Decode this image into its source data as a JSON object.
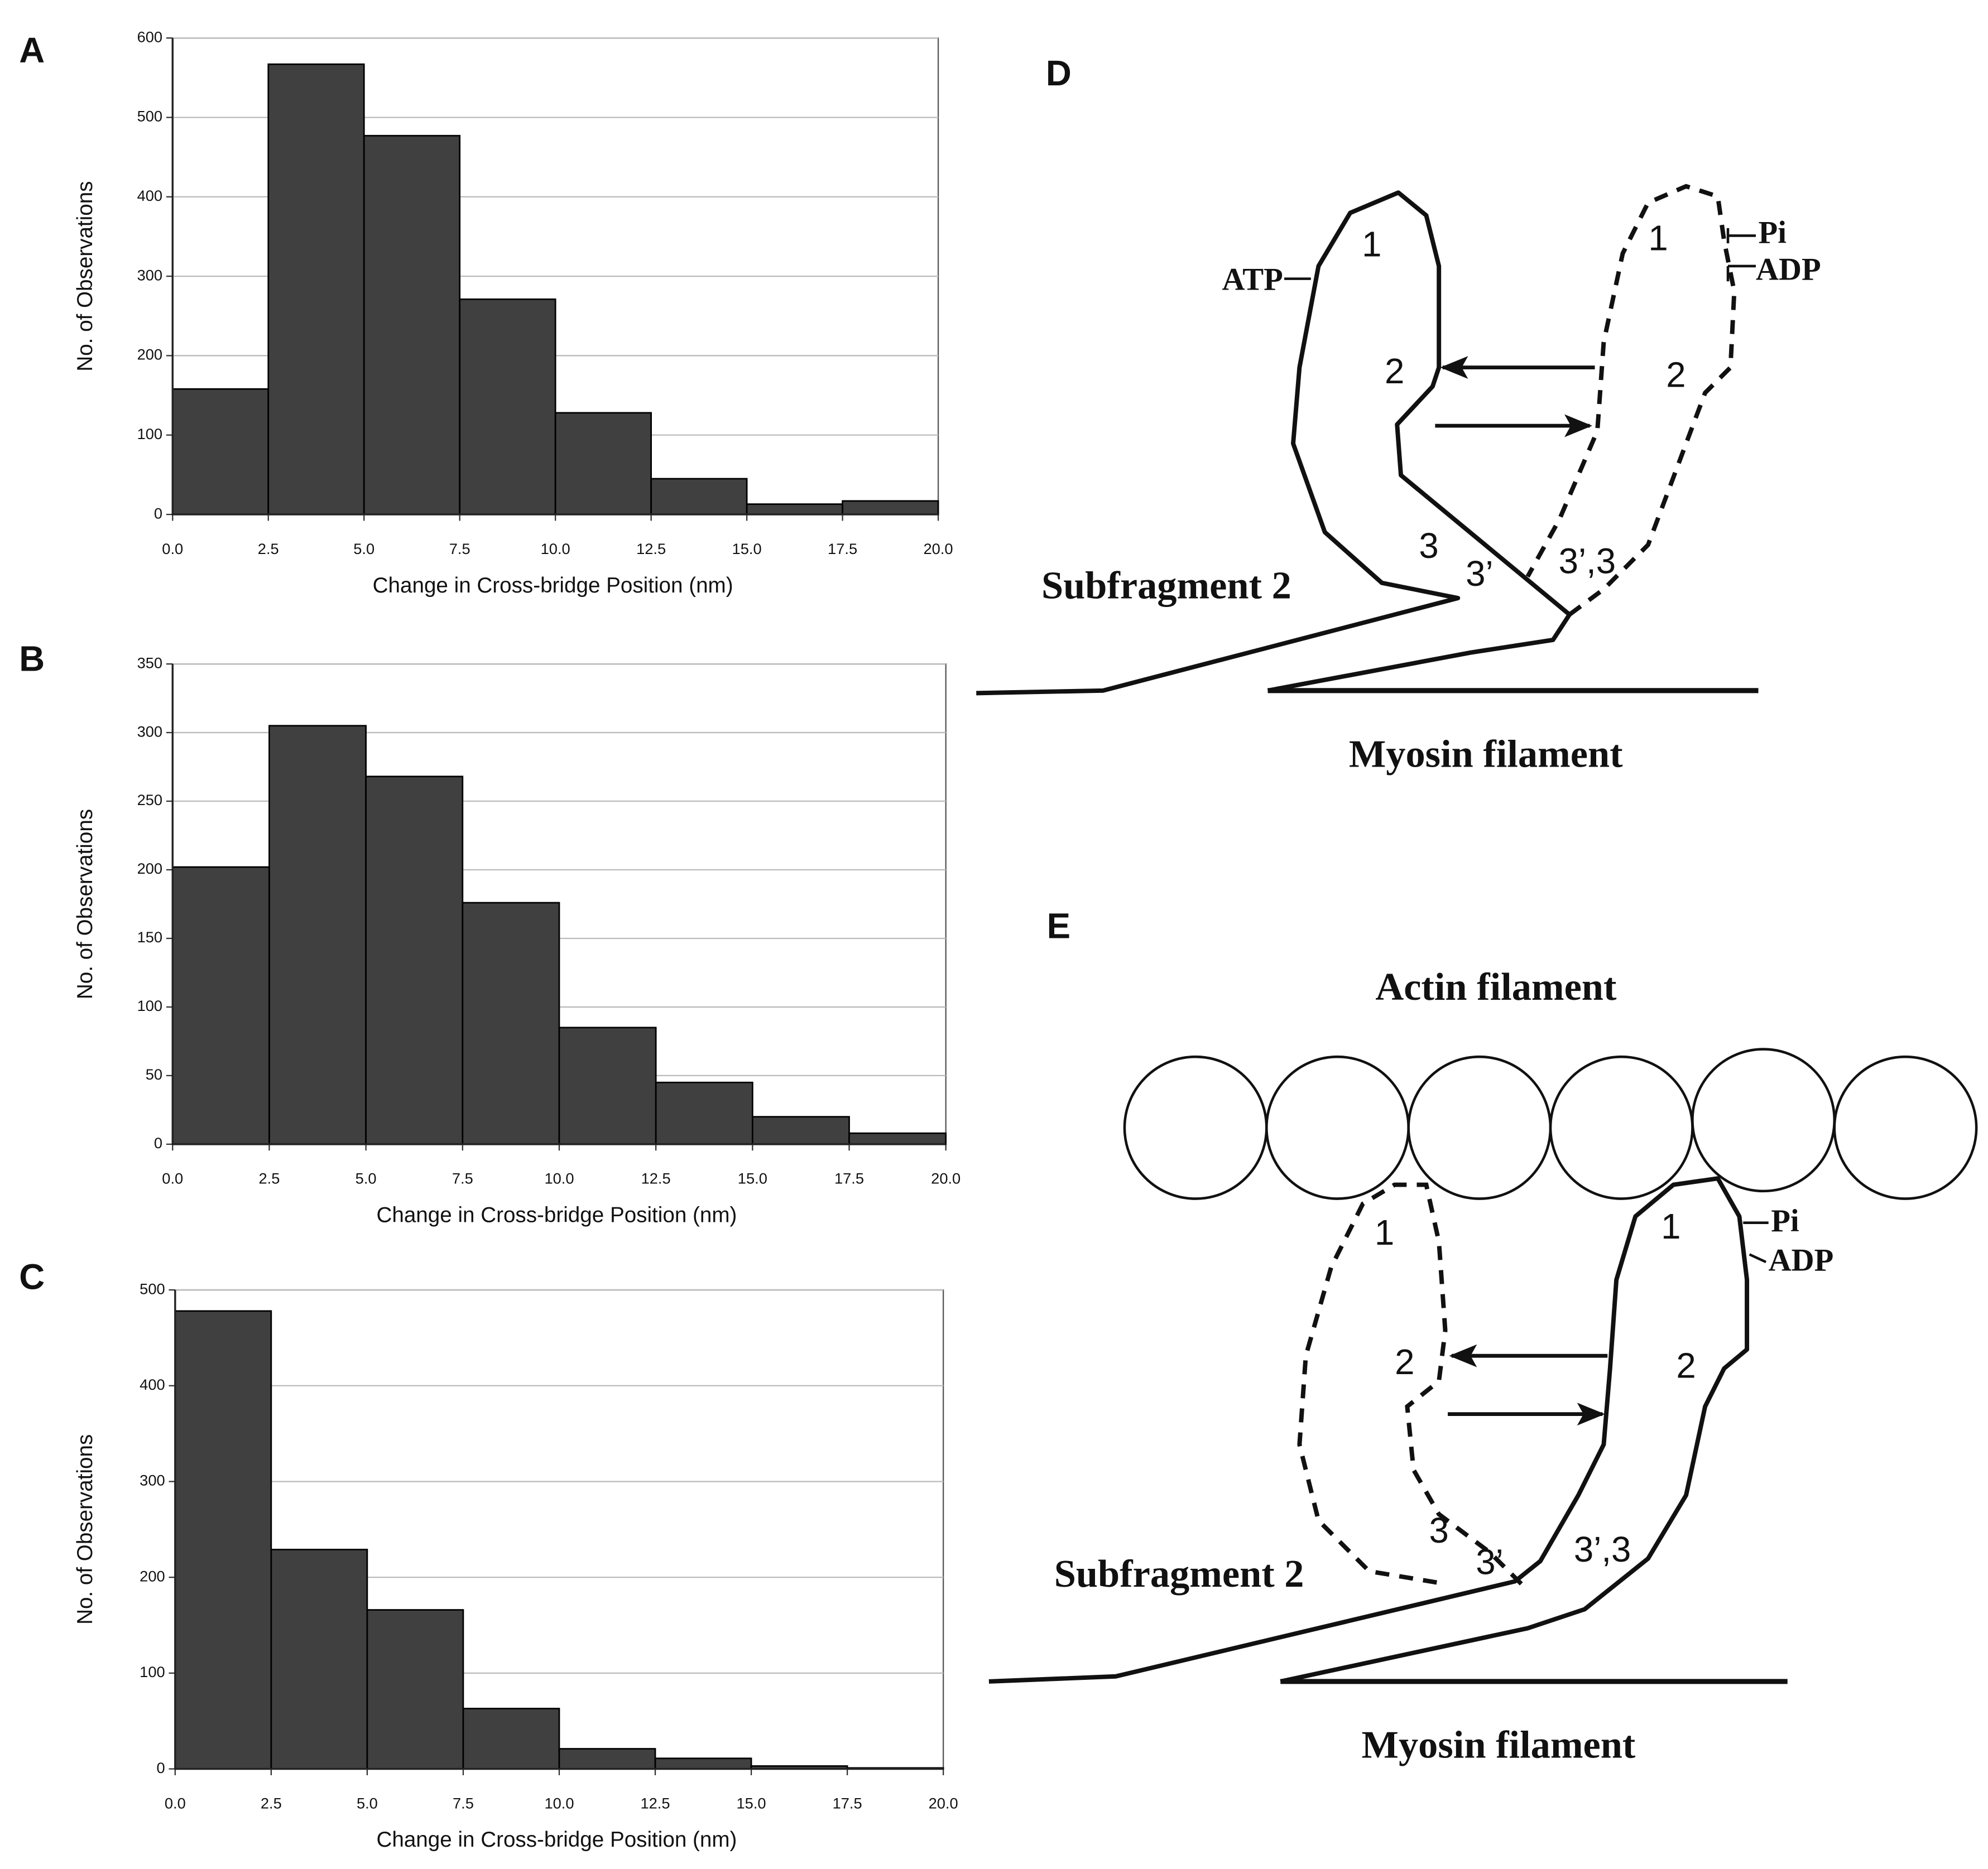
{
  "chart_data": [
    {
      "type": "histogram",
      "letter": "A",
      "xlabel": "Change in Cross-bridge Position (nm)",
      "ylabel": "No. of Observations",
      "bins": [
        0,
        2.5,
        5,
        7.5,
        10,
        12.5,
        15,
        17.5,
        20
      ],
      "values": [
        158,
        567,
        477,
        271,
        128,
        45,
        13,
        17
      ],
      "color": "#404040",
      "xlim": [
        0,
        20
      ],
      "xticks": [
        {
          "value": 0,
          "label": "0.0"
        },
        2.5,
        {
          "value": 5,
          "label": "5.0"
        },
        7.5,
        {
          "value": 10,
          "label": "10.0"
        },
        12.5,
        {
          "value": 15,
          "label": "15.0"
        },
        17.5,
        {
          "value": 20,
          "label": "20.0"
        }
      ],
      "ylim": [
        0,
        600
      ],
      "yticks": [
        0,
        100,
        200,
        300,
        400,
        500,
        600
      ],
      "grid": true
    },
    {
      "type": "histogram",
      "letter": "B",
      "xlabel": "Change in Cross-bridge Position (nm)",
      "ylabel": "No. of Observations",
      "bins": [
        0,
        2.5,
        5,
        7.5,
        10,
        12.5,
        15,
        17.5,
        20
      ],
      "values": [
        202,
        305,
        268,
        176,
        85,
        45,
        20,
        8
      ],
      "color": "#404040",
      "xlim": [
        0,
        20
      ],
      "xticks": [
        {
          "value": 0,
          "label": "0.0"
        },
        2.5,
        {
          "value": 5,
          "label": "5.0"
        },
        7.5,
        {
          "value": 10,
          "label": "10.0"
        },
        12.5,
        {
          "value": 15,
          "label": "15.0"
        },
        17.5,
        {
          "value": 20,
          "label": "20.0"
        }
      ],
      "ylim": [
        0,
        350
      ],
      "yticks": [
        0,
        50,
        100,
        150,
        200,
        250,
        300,
        350
      ],
      "grid": true
    },
    {
      "type": "histogram",
      "letter": "C",
      "xlabel": "Change in Cross-bridge Position (nm)",
      "ylabel": "No. of Observations",
      "bins": [
        0,
        2.5,
        5,
        7.5,
        10,
        12.5,
        15,
        17.5,
        20
      ],
      "values": [
        478,
        229,
        166,
        63,
        21,
        11,
        3,
        1
      ],
      "color": "#404040",
      "xlim": [
        0,
        20
      ],
      "xticks": [
        {
          "value": 0,
          "label": "0.0"
        },
        2.5,
        {
          "value": 5,
          "label": "5.0"
        },
        7.5,
        {
          "value": 10,
          "label": "10.0"
        },
        12.5,
        {
          "value": 15,
          "label": "15.0"
        },
        17.5,
        {
          "value": 20,
          "label": "20.0"
        }
      ],
      "ylim": [
        0,
        500
      ],
      "yticks": [
        0,
        100,
        200,
        300,
        400,
        500
      ],
      "grid": true
    }
  ],
  "diagrams": [
    {
      "letter": "D",
      "labels": [
        "ATP",
        "Pi",
        "ADP"
      ],
      "head_numbers": [
        "1",
        "2",
        "3",
        "3’"
      ],
      "outline_numbers": [
        "1",
        "2",
        "3’,3"
      ],
      "subfragment": "Subfragment 2",
      "filament": "Myosin filament"
    },
    {
      "letter": "E",
      "actin": "Actin filament",
      "labels": [
        "Pi",
        "ADP"
      ],
      "head_numbers": [
        "1",
        "2",
        "3’,3"
      ],
      "outline_numbers": [
        "1",
        "2",
        "3",
        "3’"
      ],
      "subfragment": "Subfragment 2",
      "filament": "Myosin filament"
    }
  ]
}
